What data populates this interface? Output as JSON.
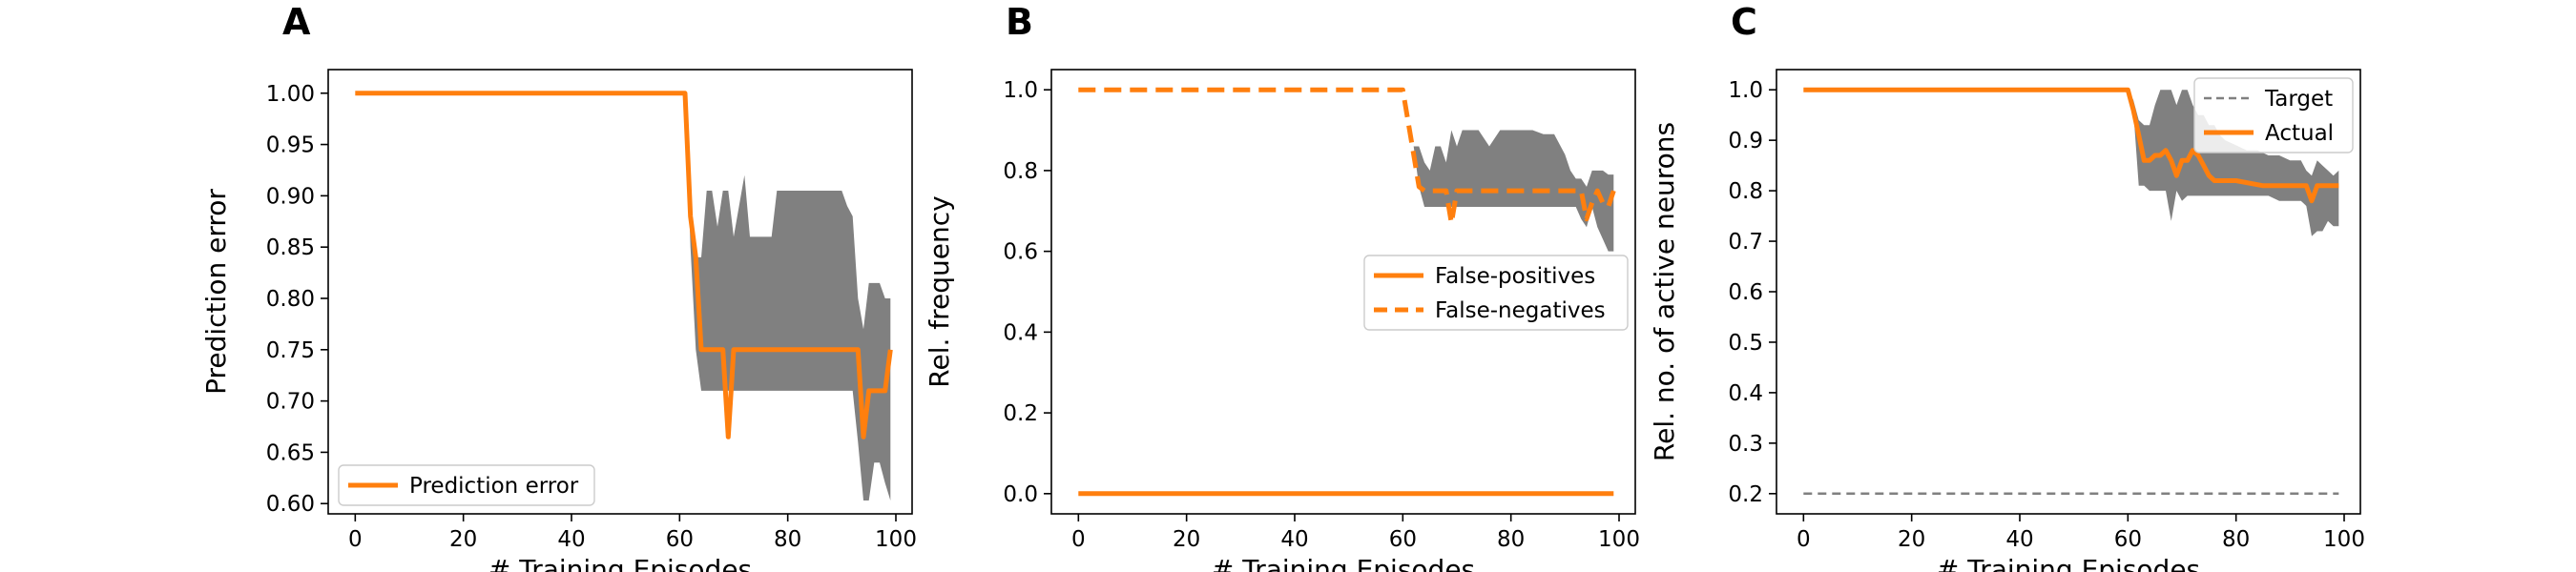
{
  "chart_data": [
    {
      "type": "line",
      "panel_letter": "A",
      "xlabel": "# Training Episodes",
      "ylabel": "Prediction error",
      "xlim": [
        -5,
        103
      ],
      "ylim": [
        0.59,
        1.023
      ],
      "xticks": [
        0,
        20,
        40,
        60,
        80,
        100
      ],
      "xtick_labels": [
        "0",
        "20",
        "40",
        "60",
        "80",
        "100"
      ],
      "yticks": [
        0.6,
        0.65,
        0.7,
        0.75,
        0.8,
        0.85,
        0.9,
        0.95,
        1.0
      ],
      "ytick_labels": [
        "0.60",
        "0.65",
        "0.70",
        "0.75",
        "0.80",
        "0.85",
        "0.90",
        "0.95",
        "1.00"
      ],
      "legend_position": "lower-left",
      "band": {
        "color": "#808080",
        "x": [
          0,
          61,
          62,
          63,
          64,
          65,
          66,
          67,
          68,
          69,
          70,
          72,
          73,
          74,
          75,
          77,
          78,
          80,
          82,
          84,
          86,
          88,
          90,
          91,
          92,
          93,
          94,
          95,
          96,
          97,
          98,
          99
        ],
        "upper": [
          1.0,
          1.0,
          0.88,
          0.84,
          0.84,
          0.905,
          0.905,
          0.87,
          0.905,
          0.905,
          0.86,
          0.92,
          0.86,
          0.86,
          0.86,
          0.86,
          0.905,
          0.905,
          0.905,
          0.905,
          0.905,
          0.905,
          0.905,
          0.89,
          0.88,
          0.8,
          0.77,
          0.815,
          0.815,
          0.815,
          0.8,
          0.8
        ],
        "lower": [
          1.0,
          1.0,
          0.85,
          0.75,
          0.71,
          0.71,
          0.71,
          0.71,
          0.71,
          0.71,
          0.71,
          0.71,
          0.71,
          0.71,
          0.71,
          0.71,
          0.71,
          0.71,
          0.71,
          0.71,
          0.71,
          0.71,
          0.71,
          0.71,
          0.71,
          0.66,
          0.603,
          0.603,
          0.64,
          0.64,
          0.62,
          0.603
        ]
      },
      "series": [
        {
          "name": "Prediction error",
          "color": "#ff7f0e",
          "style": "solid",
          "x": [
            0,
            61,
            62,
            63,
            64,
            65,
            66,
            67,
            68,
            69,
            70,
            71,
            72,
            80,
            90,
            92,
            93,
            94,
            95,
            96,
            97,
            98,
            99
          ],
          "y": [
            1.0,
            1.0,
            0.88,
            0.84,
            0.75,
            0.75,
            0.75,
            0.75,
            0.75,
            0.665,
            0.75,
            0.75,
            0.75,
            0.75,
            0.75,
            0.75,
            0.75,
            0.665,
            0.71,
            0.71,
            0.71,
            0.71,
            0.75
          ]
        }
      ]
    },
    {
      "type": "line",
      "panel_letter": "B",
      "xlabel": "# Training Episodes",
      "ylabel": "Rel. frequency",
      "xlim": [
        -5,
        103
      ],
      "ylim": [
        -0.05,
        1.05
      ],
      "xticks": [
        0,
        20,
        40,
        60,
        80,
        100
      ],
      "xtick_labels": [
        "0",
        "20",
        "40",
        "60",
        "80",
        "100"
      ],
      "yticks": [
        0.0,
        0.2,
        0.4,
        0.6,
        0.8,
        1.0
      ],
      "ytick_labels": [
        "0.0",
        "0.2",
        "0.4",
        "0.6",
        "0.8",
        "1.0"
      ],
      "legend_position": "center-right",
      "band": {
        "color": "#808080",
        "x": [
          0,
          61,
          62,
          63,
          64,
          65,
          66,
          67,
          68,
          69,
          70,
          71,
          72,
          74,
          76,
          78,
          80,
          82,
          84,
          86,
          88,
          90,
          91,
          92,
          93,
          94,
          95,
          96,
          97,
          98,
          99
        ],
        "upper": [
          1.0,
          1.0,
          0.86,
          0.86,
          0.82,
          0.8,
          0.86,
          0.86,
          0.82,
          0.9,
          0.86,
          0.9,
          0.9,
          0.9,
          0.86,
          0.9,
          0.9,
          0.9,
          0.9,
          0.89,
          0.89,
          0.84,
          0.8,
          0.78,
          0.78,
          0.76,
          0.8,
          0.8,
          0.8,
          0.79,
          0.79
        ],
        "lower": [
          1.0,
          1.0,
          0.86,
          0.76,
          0.71,
          0.71,
          0.71,
          0.71,
          0.71,
          0.71,
          0.71,
          0.71,
          0.71,
          0.71,
          0.71,
          0.71,
          0.71,
          0.71,
          0.71,
          0.71,
          0.71,
          0.71,
          0.71,
          0.71,
          0.68,
          0.66,
          0.71,
          0.66,
          0.63,
          0.6,
          0.6
        ]
      },
      "series": [
        {
          "name": "False-positives",
          "color": "#ff7f0e",
          "style": "solid",
          "x": [
            0,
            99
          ],
          "y": [
            0.0,
            0.0
          ]
        },
        {
          "name": "False-negatives",
          "color": "#ff7f0e",
          "style": "dashed",
          "x": [
            0,
            60,
            61,
            62,
            63,
            64,
            65,
            66,
            67,
            68,
            69,
            70,
            71,
            72,
            80,
            90,
            92,
            93,
            94,
            95,
            96,
            97,
            98,
            99
          ],
          "y": [
            1.0,
            1.0,
            0.92,
            0.84,
            0.76,
            0.75,
            0.75,
            0.75,
            0.75,
            0.75,
            0.67,
            0.75,
            0.75,
            0.75,
            0.75,
            0.75,
            0.75,
            0.75,
            0.68,
            0.72,
            0.75,
            0.72,
            0.71,
            0.75
          ]
        }
      ]
    },
    {
      "type": "line",
      "panel_letter": "C",
      "xlabel": "# Training Episodes",
      "ylabel": "Rel. no. of active neurons",
      "xlim": [
        -5,
        103
      ],
      "ylim": [
        0.16,
        1.04
      ],
      "xticks": [
        0,
        20,
        40,
        60,
        80,
        100
      ],
      "xtick_labels": [
        "0",
        "20",
        "40",
        "60",
        "80",
        "100"
      ],
      "yticks": [
        0.2,
        0.3,
        0.4,
        0.5,
        0.6,
        0.7,
        0.8,
        0.9,
        1.0
      ],
      "ytick_labels": [
        "0.2",
        "0.3",
        "0.4",
        "0.5",
        "0.6",
        "0.7",
        "0.8",
        "0.9",
        "1.0"
      ],
      "legend_position": "top-right",
      "band": {
        "color": "#808080",
        "x": [
          0,
          60,
          61,
          62,
          63,
          64,
          65,
          66,
          67,
          68,
          69,
          70,
          71,
          72,
          73,
          74,
          75,
          76,
          77,
          78,
          80,
          82,
          84,
          86,
          88,
          90,
          92,
          93,
          94,
          95,
          96,
          97,
          98,
          99
        ],
        "upper": [
          1.0,
          1.0,
          0.98,
          0.94,
          0.93,
          0.93,
          0.97,
          1.0,
          1.0,
          1.0,
          0.97,
          1.0,
          1.0,
          0.97,
          0.95,
          0.95,
          0.93,
          0.93,
          0.91,
          0.9,
          0.89,
          0.88,
          0.88,
          0.87,
          0.87,
          0.86,
          0.86,
          0.84,
          0.83,
          0.86,
          0.85,
          0.84,
          0.83,
          0.84
        ],
        "lower": [
          1.0,
          1.0,
          0.96,
          0.81,
          0.81,
          0.8,
          0.8,
          0.8,
          0.8,
          0.74,
          0.8,
          0.78,
          0.79,
          0.79,
          0.79,
          0.79,
          0.79,
          0.79,
          0.79,
          0.79,
          0.79,
          0.79,
          0.79,
          0.79,
          0.78,
          0.78,
          0.78,
          0.77,
          0.71,
          0.72,
          0.72,
          0.74,
          0.73,
          0.73
        ]
      },
      "series": [
        {
          "name": "Target",
          "color": "#808080",
          "style": "dashed",
          "x": [
            0,
            99
          ],
          "y": [
            0.2,
            0.2
          ]
        },
        {
          "name": "Actual",
          "color": "#ff7f0e",
          "style": "solid",
          "x": [
            0,
            60,
            61,
            62,
            63,
            64,
            65,
            66,
            67,
            68,
            69,
            70,
            71,
            72,
            73,
            74,
            75,
            76,
            77,
            78,
            80,
            85,
            90,
            92,
            93,
            94,
            95,
            96,
            97,
            98,
            99
          ],
          "y": [
            1.0,
            1.0,
            0.96,
            0.91,
            0.86,
            0.86,
            0.87,
            0.87,
            0.88,
            0.86,
            0.83,
            0.86,
            0.86,
            0.88,
            0.87,
            0.85,
            0.83,
            0.82,
            0.82,
            0.82,
            0.82,
            0.81,
            0.81,
            0.81,
            0.81,
            0.78,
            0.81,
            0.81,
            0.81,
            0.81,
            0.81
          ]
        }
      ]
    }
  ]
}
